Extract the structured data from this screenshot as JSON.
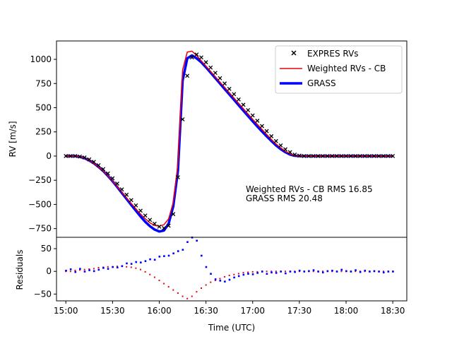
{
  "chart_data": [
    {
      "type": "scatter",
      "panel": "main",
      "title": "",
      "xlabel": "",
      "ylabel": "RV [m/s]",
      "x_unit": "minutes since 15:00 UTC",
      "xlim": [
        -6,
        219
      ],
      "ylim": [
        -840,
        1190
      ],
      "y_ticks": [
        -750,
        -500,
        -250,
        0,
        250,
        500,
        750,
        1000
      ],
      "y_tick_labels": [
        "−750",
        "−500",
        "−250",
        "0",
        "250",
        "500",
        "750",
        "1000"
      ],
      "legend": {
        "placement": "top-right",
        "entries": [
          "EXPRES RVs",
          "Weighted RVs - CB",
          "GRASS"
        ]
      },
      "annotations": [
        "Weighted RVs - CB RMS 16.85",
        "GRASS RMS 20.48"
      ],
      "series": [
        {
          "name": "EXPRES RVs",
          "style": "x-markers",
          "color": "#000000",
          "x": [
            0,
            3,
            6,
            9,
            12,
            15,
            18,
            21,
            24,
            27,
            30,
            33,
            36,
            39,
            42,
            45,
            48,
            51,
            54,
            57,
            60,
            63,
            66,
            69,
            72,
            75,
            78,
            81,
            84,
            87,
            90,
            93,
            96,
            99,
            102,
            105,
            108,
            111,
            114,
            117,
            120,
            123,
            126,
            129,
            132,
            135,
            138,
            141,
            144,
            147,
            150,
            153,
            156,
            159,
            162,
            165,
            168,
            171,
            174,
            177,
            180,
            183,
            186,
            189,
            192,
            195,
            198,
            201,
            204,
            207,
            210
          ],
          "y": [
            0,
            0,
            0,
            -5,
            -15,
            -35,
            -60,
            -95,
            -135,
            -180,
            -230,
            -285,
            -345,
            -400,
            -455,
            -510,
            -565,
            -615,
            -660,
            -700,
            -730,
            -745,
            -720,
            -600,
            -220,
            380,
            830,
            1020,
            1050,
            1020,
            970,
            915,
            860,
            805,
            750,
            695,
            640,
            585,
            530,
            475,
            420,
            365,
            310,
            258,
            205,
            155,
            110,
            70,
            40,
            15,
            5,
            0,
            0,
            0,
            0,
            0,
            0,
            0,
            0,
            0,
            0,
            0,
            0,
            0,
            0,
            0,
            0,
            0,
            0,
            0,
            0
          ]
        },
        {
          "name": "Weighted RVs - CB",
          "style": "line",
          "color": "#e8000b",
          "x": [
            0,
            3,
            6,
            9,
            12,
            15,
            18,
            21,
            24,
            27,
            30,
            33,
            36,
            39,
            42,
            45,
            48,
            51,
            54,
            57,
            60,
            63,
            66,
            69,
            72,
            75,
            78,
            81,
            84,
            87,
            90,
            93,
            96,
            99,
            102,
            105,
            108,
            111,
            114,
            117,
            120,
            123,
            126,
            129,
            132,
            135,
            138,
            141,
            144,
            147,
            150,
            153,
            156,
            159,
            162,
            165,
            168,
            171,
            174,
            177,
            180,
            183,
            186,
            189,
            192,
            195,
            198,
            201,
            204,
            207,
            210
          ],
          "y": [
            0,
            0,
            0,
            -8,
            -22,
            -45,
            -75,
            -112,
            -155,
            -205,
            -258,
            -315,
            -375,
            -432,
            -490,
            -545,
            -600,
            -648,
            -690,
            -718,
            -725,
            -710,
            -650,
            -480,
            -80,
            890,
            1075,
            1085,
            1040,
            985,
            930,
            875,
            820,
            765,
            710,
            655,
            600,
            545,
            490,
            435,
            380,
            327,
            275,
            223,
            172,
            125,
            85,
            50,
            22,
            6,
            0,
            0,
            0,
            0,
            0,
            0,
            0,
            0,
            0,
            0,
            0,
            0,
            0,
            0,
            0,
            0,
            0,
            0,
            0,
            0,
            0
          ]
        },
        {
          "name": "GRASS",
          "style": "thick-line",
          "color": "#0000ff",
          "x": [
            0,
            3,
            6,
            9,
            12,
            15,
            18,
            21,
            24,
            27,
            30,
            33,
            36,
            39,
            42,
            45,
            48,
            51,
            54,
            57,
            60,
            63,
            66,
            69,
            72,
            75,
            78,
            81,
            84,
            87,
            90,
            93,
            96,
            99,
            102,
            105,
            108,
            111,
            114,
            117,
            120,
            123,
            126,
            129,
            132,
            135,
            138,
            141,
            144,
            147,
            150,
            153,
            156,
            159,
            162,
            165,
            168,
            171,
            174,
            177,
            180,
            183,
            186,
            189,
            192,
            195,
            198,
            201,
            204,
            207,
            210
          ],
          "y": [
            0,
            0,
            0,
            -8,
            -22,
            -45,
            -75,
            -112,
            -155,
            -205,
            -260,
            -320,
            -382,
            -443,
            -505,
            -565,
            -625,
            -680,
            -725,
            -760,
            -780,
            -770,
            -700,
            -520,
            -150,
            780,
            1010,
            1040,
            1010,
            970,
            918,
            862,
            806,
            750,
            694,
            638,
            582,
            526,
            470,
            414,
            360,
            306,
            254,
            204,
            156,
            110,
            72,
            40,
            16,
            3,
            0,
            0,
            0,
            0,
            0,
            0,
            0,
            0,
            0,
            0,
            0,
            0,
            0,
            0,
            0,
            0,
            0,
            0,
            0,
            0,
            0
          ]
        }
      ]
    },
    {
      "type": "scatter",
      "panel": "residuals",
      "title": "",
      "xlabel": "Time (UTC)",
      "ylabel": "Residuals",
      "x_unit": "minutes since 15:00 UTC",
      "xlim": [
        -6,
        219
      ],
      "ylim": [
        -65,
        75
      ],
      "y_ticks": [
        -50,
        0,
        50
      ],
      "y_tick_labels": [
        "−50",
        "0",
        "50"
      ],
      "x_ticks": [
        0,
        30,
        60,
        90,
        120,
        150,
        180,
        210
      ],
      "x_tick_labels": [
        "15:00",
        "15:30",
        "16:00",
        "16:30",
        "17:00",
        "17:30",
        "18:00",
        "18:30"
      ],
      "series": [
        {
          "name": "Weighted RVs - CB residuals",
          "style": "small-dots",
          "color": "#e8000b",
          "x": [
            0,
            3,
            6,
            9,
            12,
            15,
            18,
            21,
            24,
            27,
            30,
            33,
            36,
            39,
            42,
            45,
            48,
            51,
            54,
            57,
            60,
            63,
            66,
            69,
            72,
            75,
            78,
            81,
            84,
            87,
            90,
            93,
            96,
            99,
            102,
            105,
            108,
            111,
            114,
            117,
            120,
            123,
            126,
            129,
            132,
            135,
            138,
            141,
            144,
            147,
            150,
            153,
            156,
            159,
            162,
            165,
            168,
            171,
            174,
            177,
            180,
            183,
            186,
            189,
            192,
            195,
            198,
            201,
            204,
            207,
            210
          ],
          "y": [
            0,
            0,
            2,
            3,
            4,
            5,
            6,
            8,
            9,
            10,
            10,
            11,
            11,
            10,
            9,
            7,
            4,
            -1,
            -7,
            -13,
            -20,
            -27,
            -34,
            -41,
            -48,
            -55,
            -60,
            -55,
            -45,
            -37,
            -30,
            -24,
            -20,
            -16,
            -12,
            -9,
            -7,
            -5,
            -3,
            -2,
            -1,
            -1,
            0,
            0,
            0,
            0,
            0,
            0,
            0,
            0,
            0,
            0,
            0,
            0,
            0,
            0,
            0,
            0,
            0,
            0,
            0,
            0,
            0,
            0,
            0,
            0,
            0,
            0,
            0,
            0,
            0
          ]
        },
        {
          "name": "GRASS residuals",
          "style": "small-dots",
          "color": "#0000ff",
          "x": [
            0,
            3,
            6,
            9,
            12,
            15,
            18,
            21,
            24,
            27,
            30,
            33,
            36,
            39,
            42,
            45,
            48,
            51,
            54,
            57,
            60,
            63,
            66,
            69,
            72,
            75,
            78,
            81,
            84,
            87,
            90,
            93,
            96,
            99,
            102,
            105,
            108,
            111,
            114,
            117,
            120,
            123,
            126,
            129,
            132,
            135,
            138,
            141,
            144,
            147,
            150,
            153,
            156,
            159,
            162,
            165,
            168,
            171,
            174,
            177,
            180,
            183,
            186,
            189,
            192,
            195,
            198,
            201,
            204,
            207,
            210
          ],
          "y": [
            2,
            5,
            -1,
            6,
            0,
            3,
            1,
            4,
            8,
            6,
            10,
            9,
            12,
            18,
            17,
            21,
            20,
            23,
            27,
            26,
            33,
            34,
            35,
            40,
            45,
            48,
            65,
            75,
            68,
            35,
            10,
            -5,
            -17,
            -20,
            -22,
            -18,
            -13,
            -10,
            -7,
            -5,
            -6,
            -3,
            0,
            -5,
            -2,
            -3,
            0,
            -4,
            0,
            -1,
            2,
            0,
            1,
            3,
            0,
            -2,
            1,
            2,
            0,
            4,
            1,
            0,
            3,
            -1,
            2,
            0,
            1,
            0,
            -2,
            0,
            0
          ]
        }
      ]
    }
  ]
}
